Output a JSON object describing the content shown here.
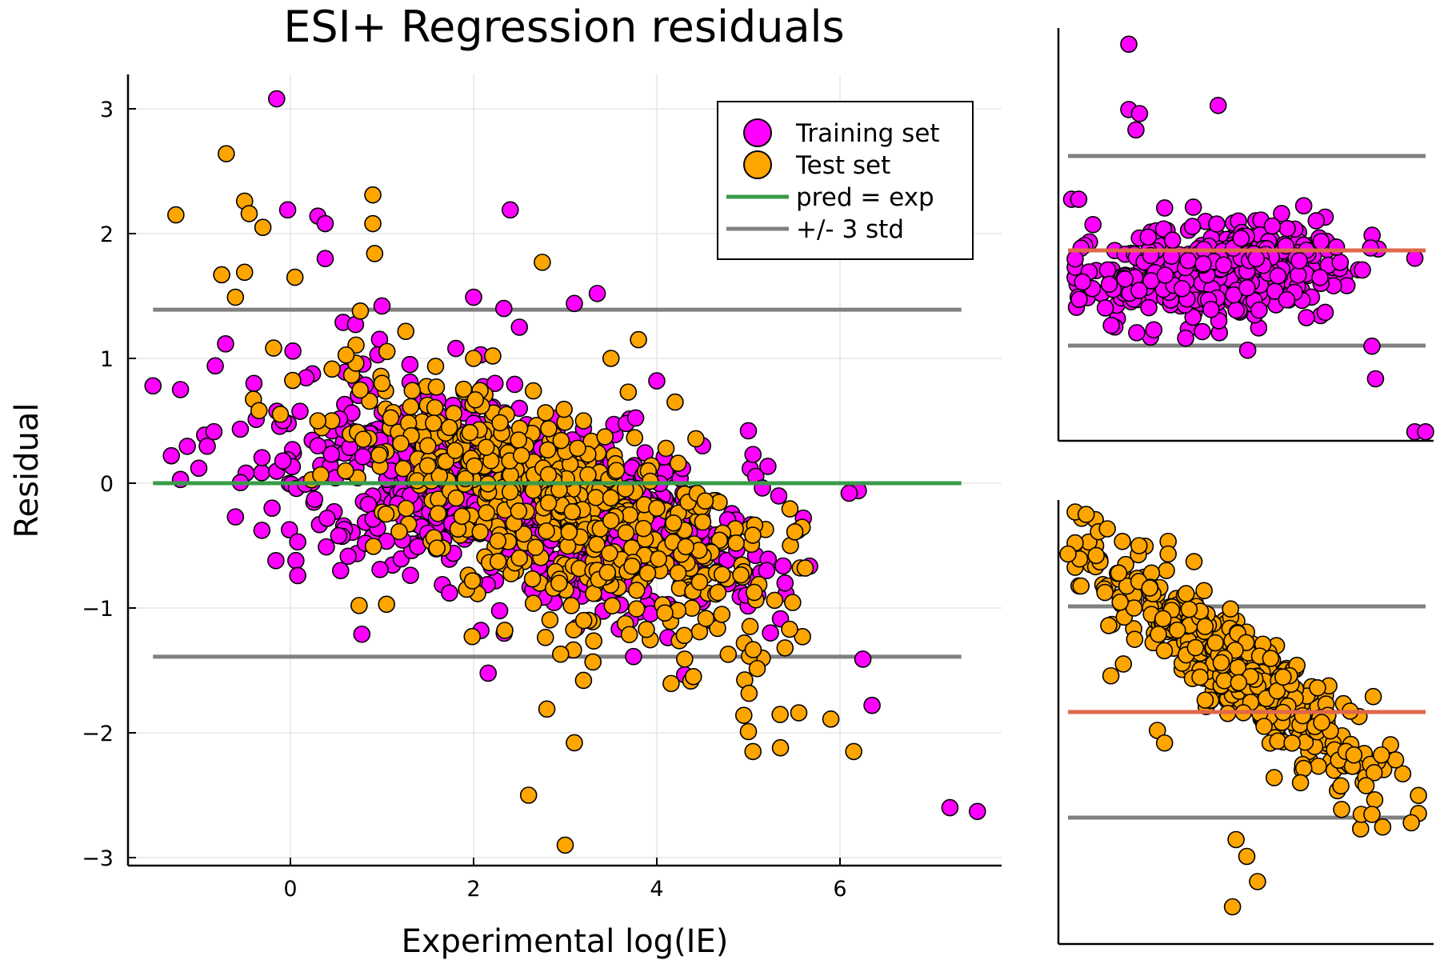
{
  "chart_data": {
    "type": "scatter",
    "title": "ESI+ Regression residuals",
    "xlabel": "Experimental log(IE)",
    "ylabel": "Residual",
    "xlim": [
      -1.8,
      7.8
    ],
    "ylim": [
      -3.1,
      3.27
    ],
    "x_ticks": [
      0,
      2,
      4,
      6
    ],
    "x_tick_labels": [
      "0",
      "2",
      "4",
      "6"
    ],
    "y_ticks": [
      -3,
      -2,
      -1,
      0,
      1,
      2,
      3
    ],
    "y_tick_labels": [
      "−3",
      "−2",
      "−1",
      "0",
      "1",
      "2",
      "3"
    ],
    "grid": true,
    "legend_position": "top-right",
    "legend": [
      {
        "label": "Training set",
        "kind": "marker",
        "color": "#ff00ff"
      },
      {
        "label": "Test set",
        "kind": "marker",
        "color": "#ffa500"
      },
      {
        "label": "pred = exp",
        "kind": "line",
        "color": "#3a9b4a"
      },
      {
        "label": "+/- 3 std",
        "kind": "line",
        "color": "#808080"
      }
    ],
    "reference_lines": {
      "zero": 0,
      "upper_3std": 1.39,
      "lower_3std": -1.39,
      "x_range": [
        -1.5,
        7.5
      ]
    },
    "colors": {
      "training": "#ff00ff",
      "test": "#ffa500",
      "pred_line": "#3a9b4a",
      "std_line": "#808080",
      "mean_line": "#e0684a"
    },
    "series": [
      {
        "name": "Training set",
        "marker": "circle",
        "notable_points": [
          [
            -0.15,
            3.08
          ],
          [
            7.2,
            -2.6
          ],
          [
            7.5,
            -2.63
          ],
          [
            6.35,
            -1.78
          ],
          [
            6.25,
            -1.41
          ],
          [
            6.2,
            -0.06
          ],
          [
            6.1,
            -0.08
          ],
          [
            -1.5,
            0.78
          ],
          [
            -1.2,
            0.75
          ],
          [
            -0.82,
            0.94
          ],
          [
            -0.03,
            2.19
          ],
          [
            0.6,
            0.89
          ],
          [
            2.4,
            2.19
          ],
          [
            0.3,
            2.14
          ],
          [
            0.38,
            2.08
          ],
          [
            0.38,
            1.8
          ],
          [
            2.0,
            1.49
          ],
          [
            0.06,
            -0.62
          ],
          [
            0.08,
            -0.74
          ],
          [
            0.08,
            -0.47
          ],
          [
            0.78,
            -1.21
          ],
          [
            2.08,
            -1.18
          ],
          [
            3.1,
            1.44
          ],
          [
            3.35,
            1.52
          ],
          [
            2.5,
            1.25
          ],
          [
            2.33,
            1.4
          ],
          [
            1.0,
            1.42
          ],
          [
            5.0,
            0.42
          ],
          [
            5.05,
            0.23
          ],
          [
            4.0,
            0.82
          ],
          [
            -1.3,
            0.22
          ],
          [
            -1.2,
            0.03
          ],
          [
            -1.0,
            0.12
          ],
          [
            -0.6,
            -0.27
          ],
          [
            -0.2,
            -0.2
          ],
          [
            0.3,
            0.3
          ],
          [
            1.1,
            0.1
          ],
          [
            1.5,
            -0.4
          ],
          [
            2.5,
            0.6
          ],
          [
            3.0,
            0.2
          ],
          [
            3.8,
            -0.4
          ],
          [
            4.5,
            0.3
          ],
          [
            5.2,
            -0.7
          ],
          [
            5.4,
            -0.8
          ],
          [
            5.6,
            -0.28
          ]
        ]
      },
      {
        "name": "Test set",
        "marker": "circle",
        "notable_points": [
          [
            3.0,
            -2.9
          ],
          [
            2.6,
            -2.5
          ],
          [
            3.1,
            -2.08
          ],
          [
            2.8,
            -1.81
          ],
          [
            3.2,
            -1.58
          ],
          [
            2.95,
            -1.37
          ],
          [
            -0.7,
            2.64
          ],
          [
            -1.25,
            2.15
          ],
          [
            -0.5,
            2.26
          ],
          [
            -0.45,
            2.16
          ],
          [
            -0.3,
            2.05
          ],
          [
            0.9,
            2.31
          ],
          [
            0.9,
            2.08
          ],
          [
            0.92,
            1.84
          ],
          [
            2.75,
            1.77
          ],
          [
            -0.5,
            1.69
          ],
          [
            -0.75,
            1.67
          ],
          [
            -0.6,
            1.49
          ],
          [
            0.05,
            1.65
          ],
          [
            5.9,
            -1.89
          ],
          [
            6.15,
            -2.15
          ],
          [
            5.55,
            -1.84
          ],
          [
            5.35,
            -2.12
          ],
          [
            5.05,
            -2.15
          ],
          [
            5.0,
            -1.99
          ],
          [
            4.95,
            -1.86
          ],
          [
            5.4,
            -1.32
          ],
          [
            5.45,
            -1.17
          ],
          [
            5.62,
            -0.68
          ],
          [
            0.75,
            -0.98
          ],
          [
            1.05,
            -0.97
          ],
          [
            1.6,
            -0.52
          ],
          [
            2.5,
            -0.6
          ],
          [
            3.5,
            -0.3
          ],
          [
            4.0,
            -0.2
          ],
          [
            4.4,
            -1.55
          ],
          [
            4.3,
            -1.22
          ],
          [
            3.5,
            1.0
          ],
          [
            3.8,
            1.15
          ],
          [
            2.0,
            1.0
          ],
          [
            1.5,
            0.3
          ],
          [
            0.3,
            0.5
          ],
          [
            1.0,
            0.8
          ],
          [
            3.2,
            0.5
          ],
          [
            4.2,
            0.65
          ]
        ]
      }
    ],
    "insets": [
      {
        "name": "Training set",
        "color": "#ff00ff",
        "reference_lines_color": "#808080",
        "mean_line_color": "#e0684a"
      },
      {
        "name": "Test set",
        "color": "#ffa500",
        "reference_lines_color": "#808080",
        "mean_line_color": "#e0684a"
      }
    ]
  }
}
